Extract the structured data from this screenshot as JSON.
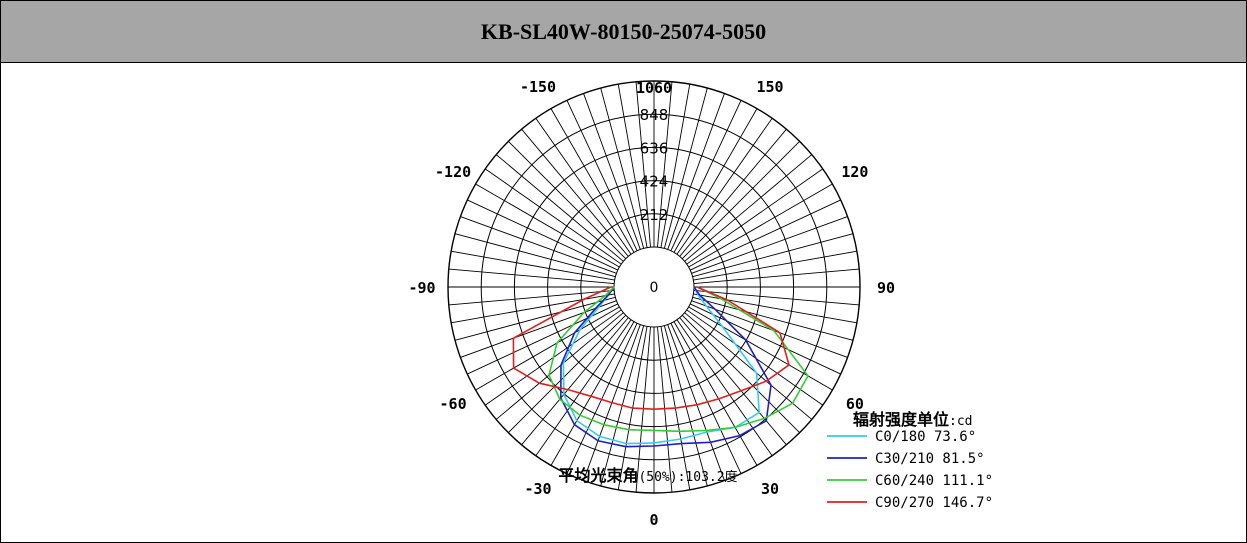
{
  "header": {
    "title": "KB-SL40W-80150-25074-5050"
  },
  "chart_data": {
    "type": "polar-line",
    "radial_ticks": [
      "0",
      "212",
      "424",
      "636",
      "848",
      "1060"
    ],
    "radial_max": 1060,
    "angle_labels": [
      {
        "text": "0",
        "angle": 0
      },
      {
        "text": "30",
        "angle": 30
      },
      {
        "text": "60",
        "angle": 60
      },
      {
        "text": "90",
        "angle": 90
      },
      {
        "text": "120",
        "angle": 120
      },
      {
        "text": "150",
        "angle": 150
      },
      {
        "text": "1060",
        "angle": 180
      },
      {
        "text": "-150",
        "angle": -150
      },
      {
        "text": "-120",
        "angle": -120
      },
      {
        "text": "-90",
        "angle": -90
      },
      {
        "text": "-60",
        "angle": -60
      },
      {
        "text": "-30",
        "angle": -30
      }
    ],
    "unit_label": "辐射强度单位",
    "unit_value": ":cd",
    "beam_angle_label": "平均光束角",
    "beam_angle_value": "(50%):103.2度",
    "series": [
      {
        "name": "C0/180 73.6°",
        "color": "#33ccee",
        "points": [
          [
            -90,
            0
          ],
          [
            -80,
            40
          ],
          [
            -70,
            120
          ],
          [
            -60,
            290
          ],
          [
            -50,
            500
          ],
          [
            -40,
            640
          ],
          [
            -30,
            730
          ],
          [
            -20,
            760
          ],
          [
            -10,
            760
          ],
          [
            0,
            740
          ],
          [
            10,
            730
          ],
          [
            20,
            730
          ],
          [
            30,
            780
          ],
          [
            40,
            790
          ],
          [
            50,
            600
          ],
          [
            60,
            250
          ],
          [
            70,
            100
          ],
          [
            80,
            30
          ],
          [
            90,
            0
          ]
        ]
      },
      {
        "name": "C30/210 81.5°",
        "color": "#2020c0",
        "points": [
          [
            -90,
            0
          ],
          [
            -80,
            40
          ],
          [
            -70,
            140
          ],
          [
            -60,
            330
          ],
          [
            -50,
            520
          ],
          [
            -40,
            670
          ],
          [
            -30,
            760
          ],
          [
            -20,
            790
          ],
          [
            -10,
            780
          ],
          [
            0,
            760
          ],
          [
            10,
            760
          ],
          [
            20,
            800
          ],
          [
            30,
            840
          ],
          [
            40,
            860
          ],
          [
            50,
            720
          ],
          [
            60,
            420
          ],
          [
            70,
            160
          ],
          [
            80,
            40
          ],
          [
            90,
            0
          ]
        ]
      },
      {
        "name": "C60/240 111.1°",
        "color": "#33cc33",
        "points": [
          [
            -90,
            0
          ],
          [
            -80,
            60
          ],
          [
            -70,
            220
          ],
          [
            -60,
            460
          ],
          [
            -50,
            620
          ],
          [
            -40,
            680
          ],
          [
            -30,
            690
          ],
          [
            -20,
            680
          ],
          [
            -10,
            670
          ],
          [
            0,
            660
          ],
          [
            10,
            680
          ],
          [
            20,
            720
          ],
          [
            30,
            780
          ],
          [
            40,
            840
          ],
          [
            50,
            900
          ],
          [
            60,
            880
          ],
          [
            70,
            560
          ],
          [
            80,
            180
          ],
          [
            90,
            20
          ]
        ]
      },
      {
        "name": "C90/270 146.7°",
        "color": "#e02020",
        "points": [
          [
            -90,
            20
          ],
          [
            -80,
            200
          ],
          [
            -70,
            700
          ],
          [
            -60,
            780
          ],
          [
            -50,
            700
          ],
          [
            -40,
            600
          ],
          [
            -30,
            550
          ],
          [
            -20,
            530
          ],
          [
            -10,
            530
          ],
          [
            0,
            525
          ],
          [
            10,
            530
          ],
          [
            20,
            545
          ],
          [
            30,
            570
          ],
          [
            40,
            610
          ],
          [
            50,
            680
          ],
          [
            60,
            740
          ],
          [
            70,
            600
          ],
          [
            80,
            220
          ],
          [
            90,
            20
          ]
        ]
      }
    ]
  }
}
